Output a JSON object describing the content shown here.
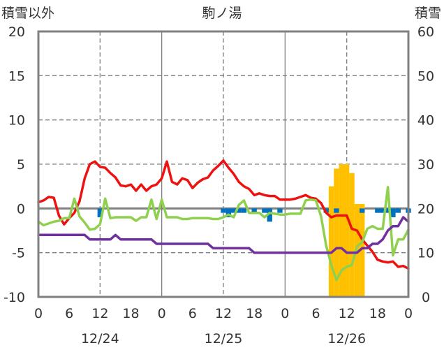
{
  "chart_data": {
    "type": "line",
    "title": "駒ノ湯",
    "ylabel_left": "積雪以外",
    "ylabel_right": "積雪",
    "x_range_hours": [
      0,
      72
    ],
    "ylim_left": [
      -10,
      20
    ],
    "ylim_right": [
      0,
      60
    ],
    "yticks_left": [
      "20",
      "15",
      "10",
      "5",
      "0",
      "-5",
      "-10"
    ],
    "yticks_left_values": [
      20,
      15,
      10,
      5,
      0,
      -5,
      -10
    ],
    "yticks_right": [
      "60",
      "50",
      "40",
      "30",
      "20",
      "10",
      "0"
    ],
    "yticks_right_values": [
      60,
      50,
      40,
      30,
      20,
      10,
      0
    ],
    "xticks": [
      "0",
      "6",
      "12",
      "18",
      "0",
      "6",
      "12",
      "18",
      "0",
      "6",
      "12",
      "18",
      "0"
    ],
    "date_labels": [
      {
        "label": "12/24",
        "hour": 12
      },
      {
        "label": "12/25",
        "hour": 36
      },
      {
        "label": "12/26",
        "hour": 60
      }
    ],
    "grid": {
      "solid_hours": [
        24,
        48
      ],
      "dashed_hours": [
        12,
        36,
        60
      ],
      "dashed_y": [
        15,
        10,
        5,
        -5
      ],
      "zero_line": 0
    },
    "colors": {
      "red": "#ee1111",
      "green": "#8fd14f",
      "purple": "#7030a0",
      "blue": "#0070c0",
      "orange": "#ffc000",
      "grid": "#7f7f7f",
      "zero": "#808080",
      "frame": "#808080"
    },
    "bars_blue": {
      "x": [
        12,
        36,
        37,
        38,
        39,
        40,
        42,
        44,
        45,
        47,
        56,
        58,
        63,
        66,
        67,
        68,
        69,
        70,
        72
      ],
      "y": [
        -1,
        -0.5,
        -1,
        -0.5,
        -0.5,
        -0.5,
        -0.5,
        -0.5,
        -1.5,
        -0.5,
        -0.5,
        -0.5,
        -0.5,
        -0.5,
        -0.5,
        -0.5,
        -1,
        -0.5,
        -0.5
      ]
    },
    "bars_orange": {
      "x": [
        57,
        58,
        59,
        60,
        61,
        62,
        63
      ],
      "snow_cm": [
        25,
        29,
        30,
        30,
        28,
        21,
        21
      ]
    },
    "series": [
      {
        "color": "red",
        "x": [
          0,
          1,
          2,
          3,
          4,
          5,
          6,
          7,
          8,
          9,
          10,
          11,
          12,
          13,
          14,
          15,
          16,
          17,
          18,
          19,
          20,
          21,
          22,
          23,
          24,
          25,
          26,
          27,
          28,
          29,
          30,
          31,
          32,
          33,
          34,
          35,
          36,
          37,
          38,
          39,
          40,
          41,
          42,
          43,
          44,
          45,
          46,
          47,
          48,
          49,
          50,
          51,
          52,
          53,
          54,
          55,
          56,
          57,
          58,
          59,
          60,
          61,
          62,
          63,
          64,
          65,
          66,
          67,
          68,
          69,
          70,
          71,
          72
        ],
        "y": [
          0.7,
          0.9,
          1.3,
          1.2,
          -0.8,
          -1.8,
          -1.1,
          -0.5,
          0.8,
          3.4,
          5.0,
          5.3,
          4.7,
          4.6,
          4.0,
          3.5,
          2.6,
          2.5,
          2.7,
          2.0,
          2.7,
          2.0,
          2.5,
          2.7,
          3.4,
          5.3,
          3.0,
          2.7,
          3.4,
          3.2,
          2.3,
          2.9,
          3.3,
          3.5,
          4.3,
          4.8,
          5.4,
          4.6,
          3.9,
          3.0,
          2.5,
          2.2,
          1.5,
          1.7,
          1.5,
          1.4,
          1.4,
          1.0,
          1.0,
          1.0,
          1.1,
          1.3,
          1.5,
          1.2,
          1.1,
          0.6,
          -0.5,
          -1.0,
          -0.8,
          -0.8,
          -0.8,
          -2.3,
          -2.5,
          -3.5,
          -4.2,
          -4.9,
          -5.8,
          -6.0,
          -6.1,
          -6.0,
          -6.6,
          -6.5,
          -6.8
        ]
      },
      {
        "color": "green",
        "x": [
          0,
          1,
          2,
          3,
          4,
          5,
          6,
          7,
          8,
          9,
          10,
          11,
          12,
          13,
          14,
          15,
          16,
          17,
          18,
          19,
          20,
          21,
          22,
          23,
          24,
          25,
          26,
          27,
          28,
          29,
          30,
          31,
          32,
          33,
          34,
          35,
          36,
          37,
          38,
          39,
          40,
          41,
          42,
          43,
          44,
          45,
          46,
          47,
          48,
          49,
          50,
          51,
          52,
          53,
          54,
          55,
          56,
          57,
          58,
          59,
          60,
          61,
          62,
          63,
          64,
          65,
          66,
          67,
          68,
          69,
          70,
          71,
          72
        ],
        "y": [
          -1.5,
          -1.9,
          -1.7,
          -1.5,
          -1.4,
          -1.1,
          -1.1,
          1.1,
          -0.9,
          -1.6,
          -2.4,
          -2.3,
          -1.8,
          1.1,
          -1.1,
          -1.0,
          -1.0,
          -1.0,
          -1.0,
          -1.4,
          -1.0,
          -1.0,
          1.0,
          -1.2,
          1.0,
          -1.0,
          -1.0,
          -1.0,
          -1.2,
          -1.2,
          -1.1,
          -1.1,
          -1.1,
          -1.1,
          -1.2,
          -1.2,
          -1.0,
          -0.7,
          -1.0,
          0.4,
          0.9,
          -0.5,
          -0.5,
          -0.5,
          -1.0,
          -0.5,
          -0.6,
          -0.7,
          -0.7,
          -0.6,
          -0.6,
          -0.6,
          0.9,
          1.0,
          0.9,
          -0.9,
          -4.2,
          -6.4,
          -8.1,
          -7.0,
          -6.6,
          -6.4,
          -4.3,
          -3.8,
          -2.3,
          -2.0,
          -2.3,
          -2.3,
          2.4,
          -5.3,
          -3.5,
          -3.5,
          -2.4
        ]
      },
      {
        "color": "purple",
        "x": [
          0,
          1,
          2,
          3,
          4,
          5,
          6,
          7,
          8,
          9,
          10,
          11,
          12,
          13,
          14,
          15,
          16,
          17,
          18,
          19,
          20,
          21,
          22,
          23,
          24,
          25,
          26,
          27,
          28,
          29,
          30,
          31,
          32,
          33,
          34,
          35,
          36,
          37,
          38,
          39,
          40,
          41,
          42,
          43,
          44,
          45,
          46,
          47,
          48,
          49,
          50,
          51,
          52,
          53,
          54,
          55,
          56,
          57,
          58,
          59,
          60,
          61,
          62,
          63,
          64,
          65,
          66,
          67,
          68,
          69,
          70,
          71,
          72
        ],
        "snow_cm": [
          14,
          14,
          14,
          14,
          14,
          14,
          14,
          14,
          14,
          14,
          13,
          13,
          13,
          13,
          13,
          14,
          13,
          13,
          13,
          13,
          13,
          13,
          13,
          12,
          12,
          12,
          12,
          12,
          12,
          12,
          12,
          12,
          12,
          12,
          11,
          11,
          11,
          11,
          11,
          11,
          11,
          11,
          10,
          10,
          10,
          10,
          10,
          10,
          10,
          10,
          10,
          10,
          10,
          10,
          10,
          10,
          10,
          10,
          11,
          11,
          10,
          10,
          10,
          11,
          11,
          12,
          12,
          13,
          15,
          16,
          16,
          18,
          17
        ]
      }
    ]
  }
}
